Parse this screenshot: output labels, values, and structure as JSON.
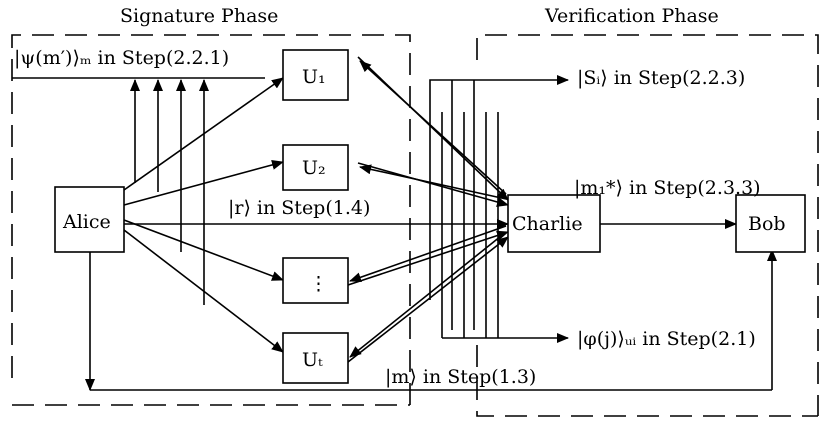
{
  "phases": {
    "signature": "Signature Phase",
    "verification": "Verification Phase"
  },
  "nodes": {
    "alice": "Alice",
    "charlie": "Charlie",
    "bob": "Bob",
    "u1": "U₁",
    "u2": "U₂",
    "u_dots": "⋮",
    "ut": "Uₜ"
  },
  "labels": {
    "psi": "|ψ(m′)⟩ₘ in Step(2.2.1)",
    "r": "|r⟩ in Step(1.4)",
    "m": "|m⟩ in Step(1.3)",
    "s": "|Sᵢ⟩ in Step(2.2.3)",
    "m1": "|m₁*⟩ in Step(2.3.3)",
    "phi": "|φ(j)⟩ᵤᵢ in Step(2.1)"
  }
}
